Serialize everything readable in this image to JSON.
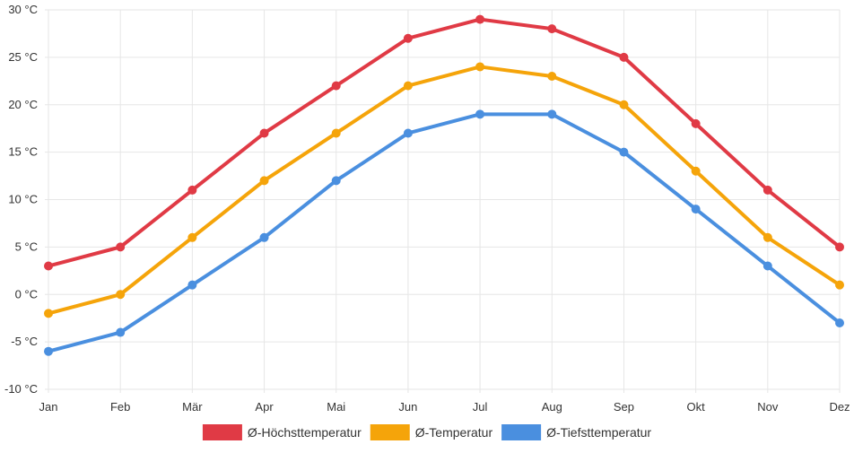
{
  "chart_data": {
    "type": "line",
    "categories": [
      "Jan",
      "Feb",
      "Mär",
      "Apr",
      "Mai",
      "Jun",
      "Jul",
      "Aug",
      "Sep",
      "Okt",
      "Nov",
      "Dez"
    ],
    "ylim": [
      -10,
      30
    ],
    "yticks": [
      "30 °C",
      "25 °C",
      "20 °C",
      "15 °C",
      "10 °C",
      "5 °C",
      "0 °C",
      "-5 °C",
      "-10 °C"
    ],
    "grid": true,
    "legend_position": "bottom",
    "series": [
      {
        "name": "Ø-Höchsttemperatur",
        "color": "#e03a45",
        "values": [
          3,
          5,
          11,
          17,
          22,
          27,
          29,
          28,
          25,
          18,
          11,
          5
        ]
      },
      {
        "name": "Ø-Temperatur",
        "color": "#f5a40a",
        "values": [
          -2,
          0,
          6,
          12,
          17,
          22,
          24,
          23,
          20,
          13,
          6,
          1
        ]
      },
      {
        "name": "Ø-Tiefsttemperatur",
        "color": "#4a8fdf",
        "values": [
          -6,
          -4,
          1,
          6,
          12,
          17,
          19,
          19,
          15,
          9,
          3,
          -3
        ]
      }
    ]
  }
}
